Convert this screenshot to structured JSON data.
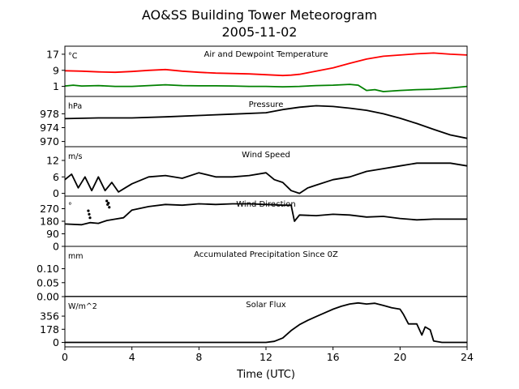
{
  "title_line1": "AO&SS Building Tower Meteorogram",
  "title_line2": "2005-11-02",
  "chart_data": {
    "type": "line",
    "xlabel": "Time (UTC)",
    "xlim": [
      0,
      24
    ],
    "xticks": [
      0,
      4,
      8,
      12,
      16,
      20,
      24
    ],
    "panels": [
      {
        "id": "temperature",
        "title": "Air and Dewpoint Temperature",
        "unit": "°C",
        "ylim": [
          -4,
          21
        ],
        "yticks": [
          1,
          9,
          17
        ],
        "series": [
          {
            "color": "#ff0000",
            "x": [
              0,
              1,
              2,
              3,
              4,
              5,
              6,
              7,
              8,
              9,
              10,
              11,
              12,
              13,
              13.5,
              14,
              15,
              16,
              17,
              18,
              19,
              20,
              21,
              22,
              23,
              24
            ],
            "y": [
              8.8,
              8.6,
              8.2,
              8.0,
              8.4,
              9.0,
              9.4,
              8.6,
              8.0,
              7.6,
              7.4,
              7.2,
              6.8,
              6.4,
              6.6,
              7.0,
              8.6,
              10.2,
              12.5,
              14.6,
              16.0,
              16.6,
              17.2,
              17.6,
              17.0,
              16.6
            ]
          },
          {
            "color": "#008000",
            "x": [
              0,
              0.5,
              1,
              2,
              3,
              4,
              5,
              6,
              7,
              8,
              9,
              10,
              11,
              12,
              13,
              14,
              15,
              16,
              17,
              17.5,
              18,
              18.5,
              19,
              20,
              21,
              22,
              23,
              24
            ],
            "y": [
              1.2,
              1.6,
              1.2,
              1.4,
              1.0,
              1.0,
              1.4,
              1.8,
              1.4,
              1.3,
              1.3,
              1.2,
              1.0,
              1.0,
              0.8,
              1.0,
              1.4,
              1.6,
              2.0,
              1.6,
              -1.0,
              -0.6,
              -1.6,
              -1.0,
              -0.6,
              -0.4,
              0.2,
              1.0
            ]
          }
        ]
      },
      {
        "id": "pressure",
        "title": "Pressure",
        "unit": "hPa",
        "ylim": [
          968.5,
          983
        ],
        "yticks": [
          970,
          974,
          978
        ],
        "series": [
          {
            "color": "#000000",
            "x": [
              0,
              2,
              4,
              6,
              8,
              10,
              12,
              13,
              14,
              15,
              16,
              17,
              18,
              19,
              20,
              21,
              22,
              23,
              24
            ],
            "y": [
              976.6,
              976.8,
              976.8,
              977.1,
              977.5,
              977.9,
              978.3,
              979.2,
              979.9,
              980.3,
              980.1,
              979.6,
              979.0,
              978.0,
              976.7,
              975.2,
              973.5,
              971.9,
              970.9
            ]
          }
        ]
      },
      {
        "id": "wind-speed",
        "title": "Wind Speed",
        "unit": "m/s",
        "ylim": [
          -1,
          17
        ],
        "yticks": [
          0,
          6,
          12
        ],
        "series": [
          {
            "color": "#000000",
            "x": [
              0,
              0.4,
              0.8,
              1.2,
              1.6,
              2,
              2.4,
              2.8,
              3.2,
              3.6,
              4,
              5,
              6,
              7,
              8,
              9,
              10,
              11,
              12,
              12.5,
              13,
              13.5,
              14,
              14.5,
              15,
              16,
              17,
              18,
              19,
              20,
              21,
              22,
              23,
              24
            ],
            "y": [
              5,
              7,
              2,
              6,
              1,
              6,
              1,
              4,
              0.5,
              2,
              3.5,
              6,
              6.5,
              5.5,
              7.5,
              6,
              6,
              6.5,
              7.5,
              5,
              4,
              1,
              0,
              2,
              3,
              5,
              6,
              8,
              9,
              10,
              11,
              11,
              11,
              10
            ]
          }
        ]
      },
      {
        "id": "wind-direction",
        "title": "Wind Direction",
        "unit": "°",
        "ylim": [
          0,
          360
        ],
        "yticks": [
          0,
          90,
          180,
          270
        ],
        "series": [
          {
            "color": "#000000",
            "x": [
              0,
              1,
              1.5,
              2,
              2.5,
              3,
              3.5,
              4,
              5,
              6,
              7,
              8,
              9,
              10,
              11,
              12,
              13,
              13.5,
              13.7,
              14,
              15,
              16,
              17,
              18,
              19,
              20,
              21,
              22,
              23,
              24
            ],
            "y": [
              160,
              155,
              170,
              165,
              185,
              195,
              205,
              260,
              285,
              300,
              295,
              305,
              300,
              305,
              305,
              300,
              295,
              295,
              180,
              225,
              220,
              230,
              225,
              210,
              215,
              200,
              190,
              195,
              195,
              195
            ]
          }
        ],
        "scatter": {
          "x": [
            1.4,
            1.45,
            1.5,
            2.5,
            2.55,
            2.6,
            2.65
          ],
          "y": [
            255,
            230,
            205,
            325,
            300,
            310,
            280
          ]
        }
      },
      {
        "id": "precipitation",
        "title": "Accumulated Precipitation Since 0Z",
        "unit": "mm",
        "ylim": [
          0,
          0.18
        ],
        "yticks": [
          0.0,
          0.05,
          0.1
        ],
        "series": [
          {
            "color": "#000000",
            "x": [
              0,
              24
            ],
            "y": [
              0,
              0
            ]
          }
        ]
      },
      {
        "id": "solar-flux",
        "title": "Solar Flux",
        "unit": "W/m^2",
        "ylim": [
          -60,
          620
        ],
        "yticks": [
          0,
          178,
          356
        ],
        "series": [
          {
            "color": "#000000",
            "x": [
              0,
              12,
              12.5,
              13,
              13.5,
              14,
              14.5,
              15,
              15.5,
              16,
              16.5,
              17,
              17.5,
              18,
              18.5,
              19,
              19.5,
              20,
              20.2,
              20.5,
              21,
              21.3,
              21.5,
              21.8,
              22.0,
              22.5,
              23,
              24
            ],
            "y": [
              0,
              0,
              15,
              60,
              160,
              240,
              300,
              350,
              400,
              450,
              490,
              520,
              535,
              520,
              530,
              500,
              470,
              450,
              380,
              250,
              250,
              100,
              210,
              170,
              20,
              0,
              0,
              0
            ]
          }
        ]
      }
    ]
  }
}
